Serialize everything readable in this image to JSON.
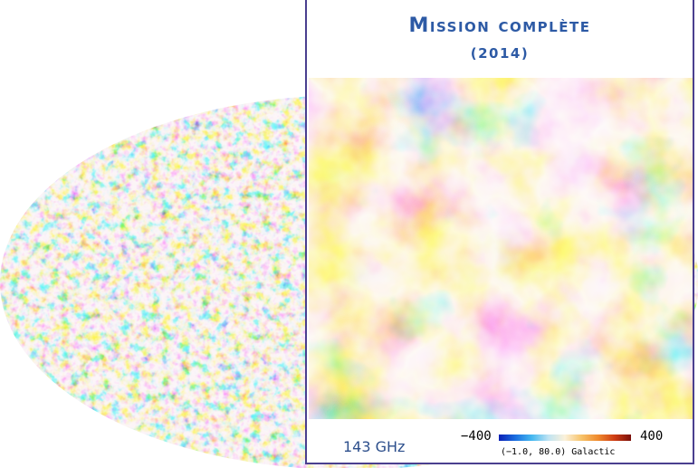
{
  "title": "Mission complète",
  "subtitle": "(2014)",
  "frequency_label": "143 GHz",
  "colorbar": {
    "min_label": "−400",
    "max_label": "400"
  },
  "coordinates_label": "(−1.0, 80.0) Galactic",
  "colors": {
    "title": "#2d5aa5",
    "border": "#4a3f8f",
    "cold": "#1a6ee0",
    "warm": "#ef8a2d"
  }
}
